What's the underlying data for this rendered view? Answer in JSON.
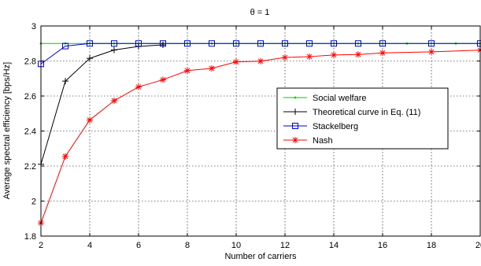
{
  "chart_data": {
    "type": "line",
    "title": "θ = 1",
    "xlabel": "Number of carriers",
    "ylabel": "Average spectral efficiency [bps/Hz]",
    "xlim": [
      2,
      20
    ],
    "ylim": [
      1.8,
      3.0
    ],
    "xticks": [
      "2",
      "4",
      "6",
      "8",
      "10",
      "12",
      "14",
      "16",
      "18",
      "20"
    ],
    "yticks": [
      "1.8",
      "2",
      "2.2",
      "2.4",
      "2.6",
      "2.8",
      "3"
    ],
    "grid": true,
    "legend_position": "center-right",
    "series": [
      {
        "name": "Social welfare",
        "color": "#00cc00",
        "marker": "point",
        "x": [
          2,
          3,
          4,
          5,
          6,
          7,
          8,
          9,
          10,
          11,
          12,
          13,
          14,
          15,
          16,
          17,
          18,
          19,
          20
        ],
        "y": [
          2.9,
          2.9,
          2.9,
          2.9,
          2.9,
          2.9,
          2.9,
          2.9,
          2.9,
          2.9,
          2.9,
          2.9,
          2.9,
          2.9,
          2.9,
          2.9,
          2.9,
          2.9,
          2.9
        ]
      },
      {
        "name": "Theoretical curve in Eq. (11)",
        "color": "#000000",
        "marker": "plus",
        "x": [
          2,
          3,
          4,
          5,
          6,
          7
        ],
        "y": [
          2.21,
          2.685,
          2.815,
          2.863,
          2.883,
          2.892
        ]
      },
      {
        "name": "Stackelberg",
        "color": "#0000cc",
        "marker": "square",
        "x": [
          2,
          3,
          4,
          5,
          6,
          7,
          8,
          9,
          10,
          11,
          12,
          13,
          14,
          15,
          16,
          18,
          20
        ],
        "y": [
          2.783,
          2.885,
          2.9,
          2.9,
          2.9,
          2.9,
          2.9,
          2.9,
          2.9,
          2.9,
          2.9,
          2.9,
          2.9,
          2.9,
          2.9,
          2.9,
          2.9
        ]
      },
      {
        "name": "Nash",
        "color": "#ff0000",
        "marker": "star",
        "x": [
          2,
          3,
          4,
          5,
          6,
          7,
          8,
          9,
          10,
          11,
          12,
          13,
          14,
          15,
          16,
          18,
          20
        ],
        "y": [
          1.875,
          2.255,
          2.463,
          2.573,
          2.652,
          2.693,
          2.745,
          2.758,
          2.795,
          2.799,
          2.82,
          2.825,
          2.834,
          2.837,
          2.846,
          2.852,
          2.862
        ]
      }
    ]
  }
}
